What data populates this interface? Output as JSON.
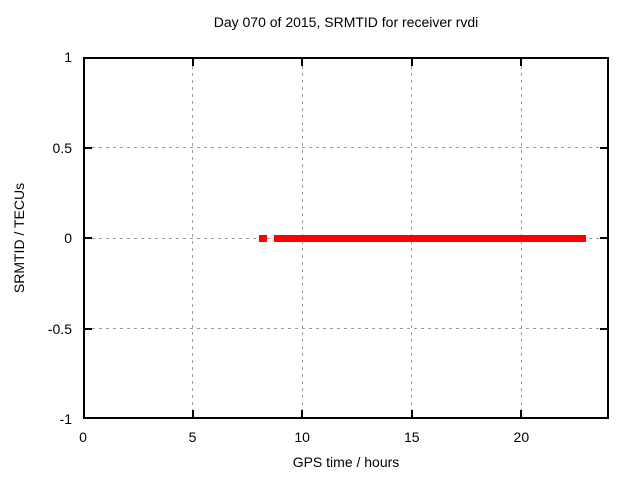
{
  "chart_data": {
    "type": "scatter",
    "title": "Day 070 of 2015, SRMTID for receiver rvdi",
    "xlabel": "GPS time / hours",
    "ylabel": "SRMTID / TECUs",
    "xlim": [
      0,
      24
    ],
    "ylim": [
      -1,
      1
    ],
    "x_ticks": [
      0,
      5,
      10,
      15,
      20
    ],
    "x_tick_labels": [
      "0",
      "5",
      "10",
      "15",
      "20"
    ],
    "y_ticks": [
      1,
      0.5,
      0,
      -0.5,
      -1
    ],
    "y_tick_labels": [
      "1",
      "0.5",
      "0",
      "-0.5",
      "-1"
    ],
    "grid": true,
    "legend": "none",
    "colors": {
      "background": "#ffffff",
      "axis": "#000000",
      "grid": "#9c9c9c",
      "series": "#ff0000"
    },
    "series": [
      {
        "name": "SRMTID",
        "color": "#ff0000",
        "marker": "filled-square",
        "y_value": 0,
        "x_segments_hours": [
          [
            8.2,
            8.25
          ],
          [
            8.86,
            8.86
          ],
          [
            9.2,
            22.77
          ]
        ]
      }
    ]
  }
}
